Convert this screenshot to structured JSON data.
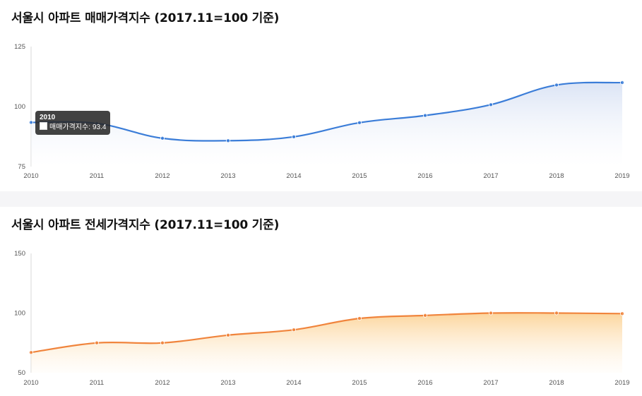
{
  "charts": [
    {
      "title": "서울시 아파트 매매가격지수 (2017.11=100 기준)",
      "color": "#3b7dd8",
      "fill_top": "#dbe4f5",
      "fill_bottom": "#ffffff",
      "tooltip": {
        "title": "2010",
        "series_name": "매매가격지수",
        "value": "93.4"
      }
    },
    {
      "title": "서울시 아파트 전세가격지수 (2017.11=100 기준)",
      "color": "#f0843c",
      "fill_top": "#fcd59c",
      "fill_bottom": "#fffaf2",
      "tooltip": null
    }
  ],
  "chart_data": [
    {
      "type": "area",
      "title": "서울시 아파트 매매가격지수 (2017.11=100 기준)",
      "xlabel": "",
      "ylabel": "",
      "x": [
        "2010",
        "2011",
        "2012",
        "2013",
        "2014",
        "2015",
        "2016",
        "2017",
        "2018",
        "2019"
      ],
      "series": [
        {
          "values": [
            93.4,
            93.0,
            86.8,
            85.8,
            87.4,
            93.3,
            96.3,
            100.8,
            109.0,
            110.0
          ]
        }
      ],
      "ylim": [
        75,
        125
      ],
      "yticks": [
        75,
        100,
        125
      ],
      "grid": false,
      "legend": "none"
    },
    {
      "type": "area",
      "title": "서울시 아파트 전세가격지수 (2017.11=100 기준)",
      "xlabel": "",
      "ylabel": "",
      "x": [
        "2010",
        "2011",
        "2012",
        "2013",
        "2014",
        "2015",
        "2016",
        "2017",
        "2018",
        "2019"
      ],
      "series": [
        {
          "values": [
            67.0,
            75.0,
            75.0,
            81.5,
            86.0,
            95.5,
            98.0,
            100.0,
            100.0,
            99.5
          ]
        }
      ],
      "ylim": [
        50,
        150
      ],
      "yticks": [
        50,
        100,
        150
      ],
      "grid": false,
      "legend": "none"
    }
  ]
}
